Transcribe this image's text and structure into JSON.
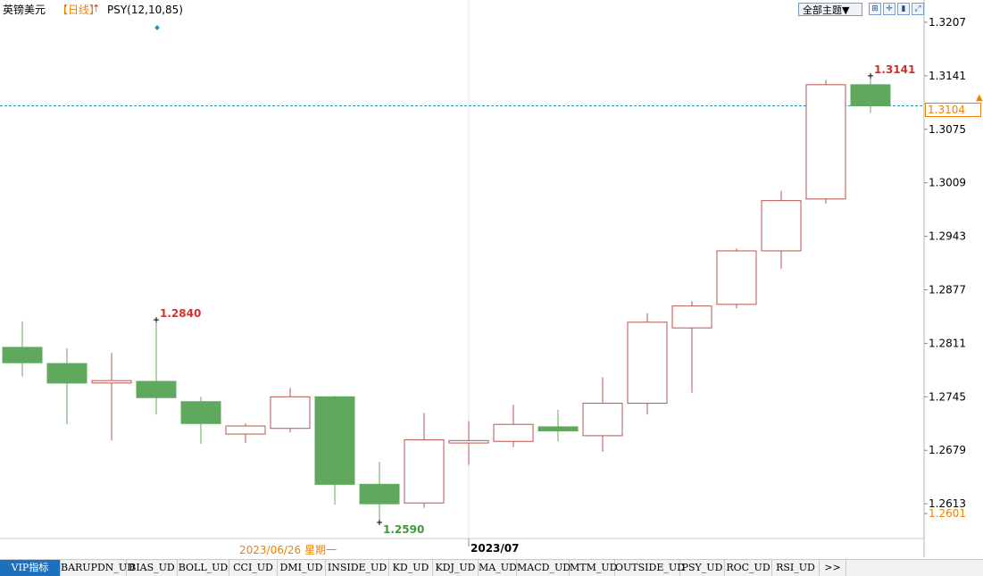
{
  "header": {
    "symbol": "英镑美元",
    "period": "【日线】",
    "indicator": "PSY(12,10,85)",
    "theme_button": "全部主题▼"
  },
  "toolbar_icons": [
    "grid-icon",
    "crosshair-icon",
    "bar-chart-icon",
    "expand-icon"
  ],
  "current_price": "1.3104",
  "xaxis": {
    "date_label": "2023/06/26 星期一",
    "month_label": "2023/07"
  },
  "tabs": [
    "VIP指标",
    "BARUPDN_UD",
    "BIAS_UD",
    "BOLL_UD",
    "CCI_UD",
    "DMI_UD",
    "INSIDE_UD",
    "KD_UD",
    "KDJ_UD",
    "MA_UD",
    "MACD_UD",
    "MTM_UD",
    "OUTSIDE_UD",
    "PSY_UD",
    "ROC_UD",
    "RSI_UD",
    ">>"
  ],
  "colors": {
    "up": "#b85450",
    "down": "#5fa85d",
    "accent": "#e8820e",
    "high_label": "#d03030",
    "low_label": "#3c9a3c"
  },
  "chart_data": {
    "type": "candlestick",
    "ylim": [
      1.2579,
      1.3229
    ],
    "yticks": [
      "1.3207",
      "1.3141",
      "1.3075",
      "1.3009",
      "1.2943",
      "1.2877",
      "1.2811",
      "1.2745",
      "1.2679",
      "1.2613",
      "1.2601"
    ],
    "candles": [
      {
        "open": 1.2806,
        "high": 1.2838,
        "low": 1.277,
        "close": 1.2787
      },
      {
        "open": 1.2786,
        "high": 1.2805,
        "low": 1.2711,
        "close": 1.2762
      },
      {
        "open": 1.2762,
        "high": 1.2799,
        "low": 1.2691,
        "close": 1.2765
      },
      {
        "open": 1.2764,
        "high": 1.284,
        "low": 1.2723,
        "close": 1.2744
      },
      {
        "open": 1.2739,
        "high": 1.2745,
        "low": 1.2687,
        "close": 1.2712
      },
      {
        "open": 1.2699,
        "high": 1.2712,
        "low": 1.2688,
        "close": 1.2709
      },
      {
        "open": 1.2706,
        "high": 1.2756,
        "low": 1.2701,
        "close": 1.2745
      },
      {
        "open": 1.2745,
        "high": 1.2746,
        "low": 1.2612,
        "close": 1.2637
      },
      {
        "open": 1.2637,
        "high": 1.2665,
        "low": 1.259,
        "close": 1.2613
      },
      {
        "open": 1.2614,
        "high": 1.2725,
        "low": 1.2608,
        "close": 1.2692
      },
      {
        "open": 1.2688,
        "high": 1.2715,
        "low": 1.2661,
        "close": 1.2691
      },
      {
        "open": 1.269,
        "high": 1.2735,
        "low": 1.2683,
        "close": 1.2711
      },
      {
        "open": 1.2708,
        "high": 1.2729,
        "low": 1.269,
        "close": 1.2703
      },
      {
        "open": 1.2697,
        "high": 1.2769,
        "low": 1.2677,
        "close": 1.2737
      },
      {
        "open": 1.2737,
        "high": 1.2848,
        "low": 1.2723,
        "close": 1.2837
      },
      {
        "open": 1.283,
        "high": 1.2863,
        "low": 1.275,
        "close": 1.2857
      },
      {
        "open": 1.2859,
        "high": 1.2928,
        "low": 1.2854,
        "close": 1.2925
      },
      {
        "open": 1.2925,
        "high": 1.2999,
        "low": 1.2903,
        "close": 1.2987
      },
      {
        "open": 1.2989,
        "high": 1.3136,
        "low": 1.2983,
        "close": 1.313
      },
      {
        "open": 1.313,
        "high": 1.3141,
        "low": 1.3095,
        "close": 1.3104
      }
    ],
    "annotations": [
      {
        "candle": 3,
        "label": "1.2840",
        "type": "high"
      },
      {
        "candle": 8,
        "label": "1.2590",
        "type": "low"
      },
      {
        "candle": 19,
        "label": "1.3141",
        "type": "high"
      }
    ]
  }
}
